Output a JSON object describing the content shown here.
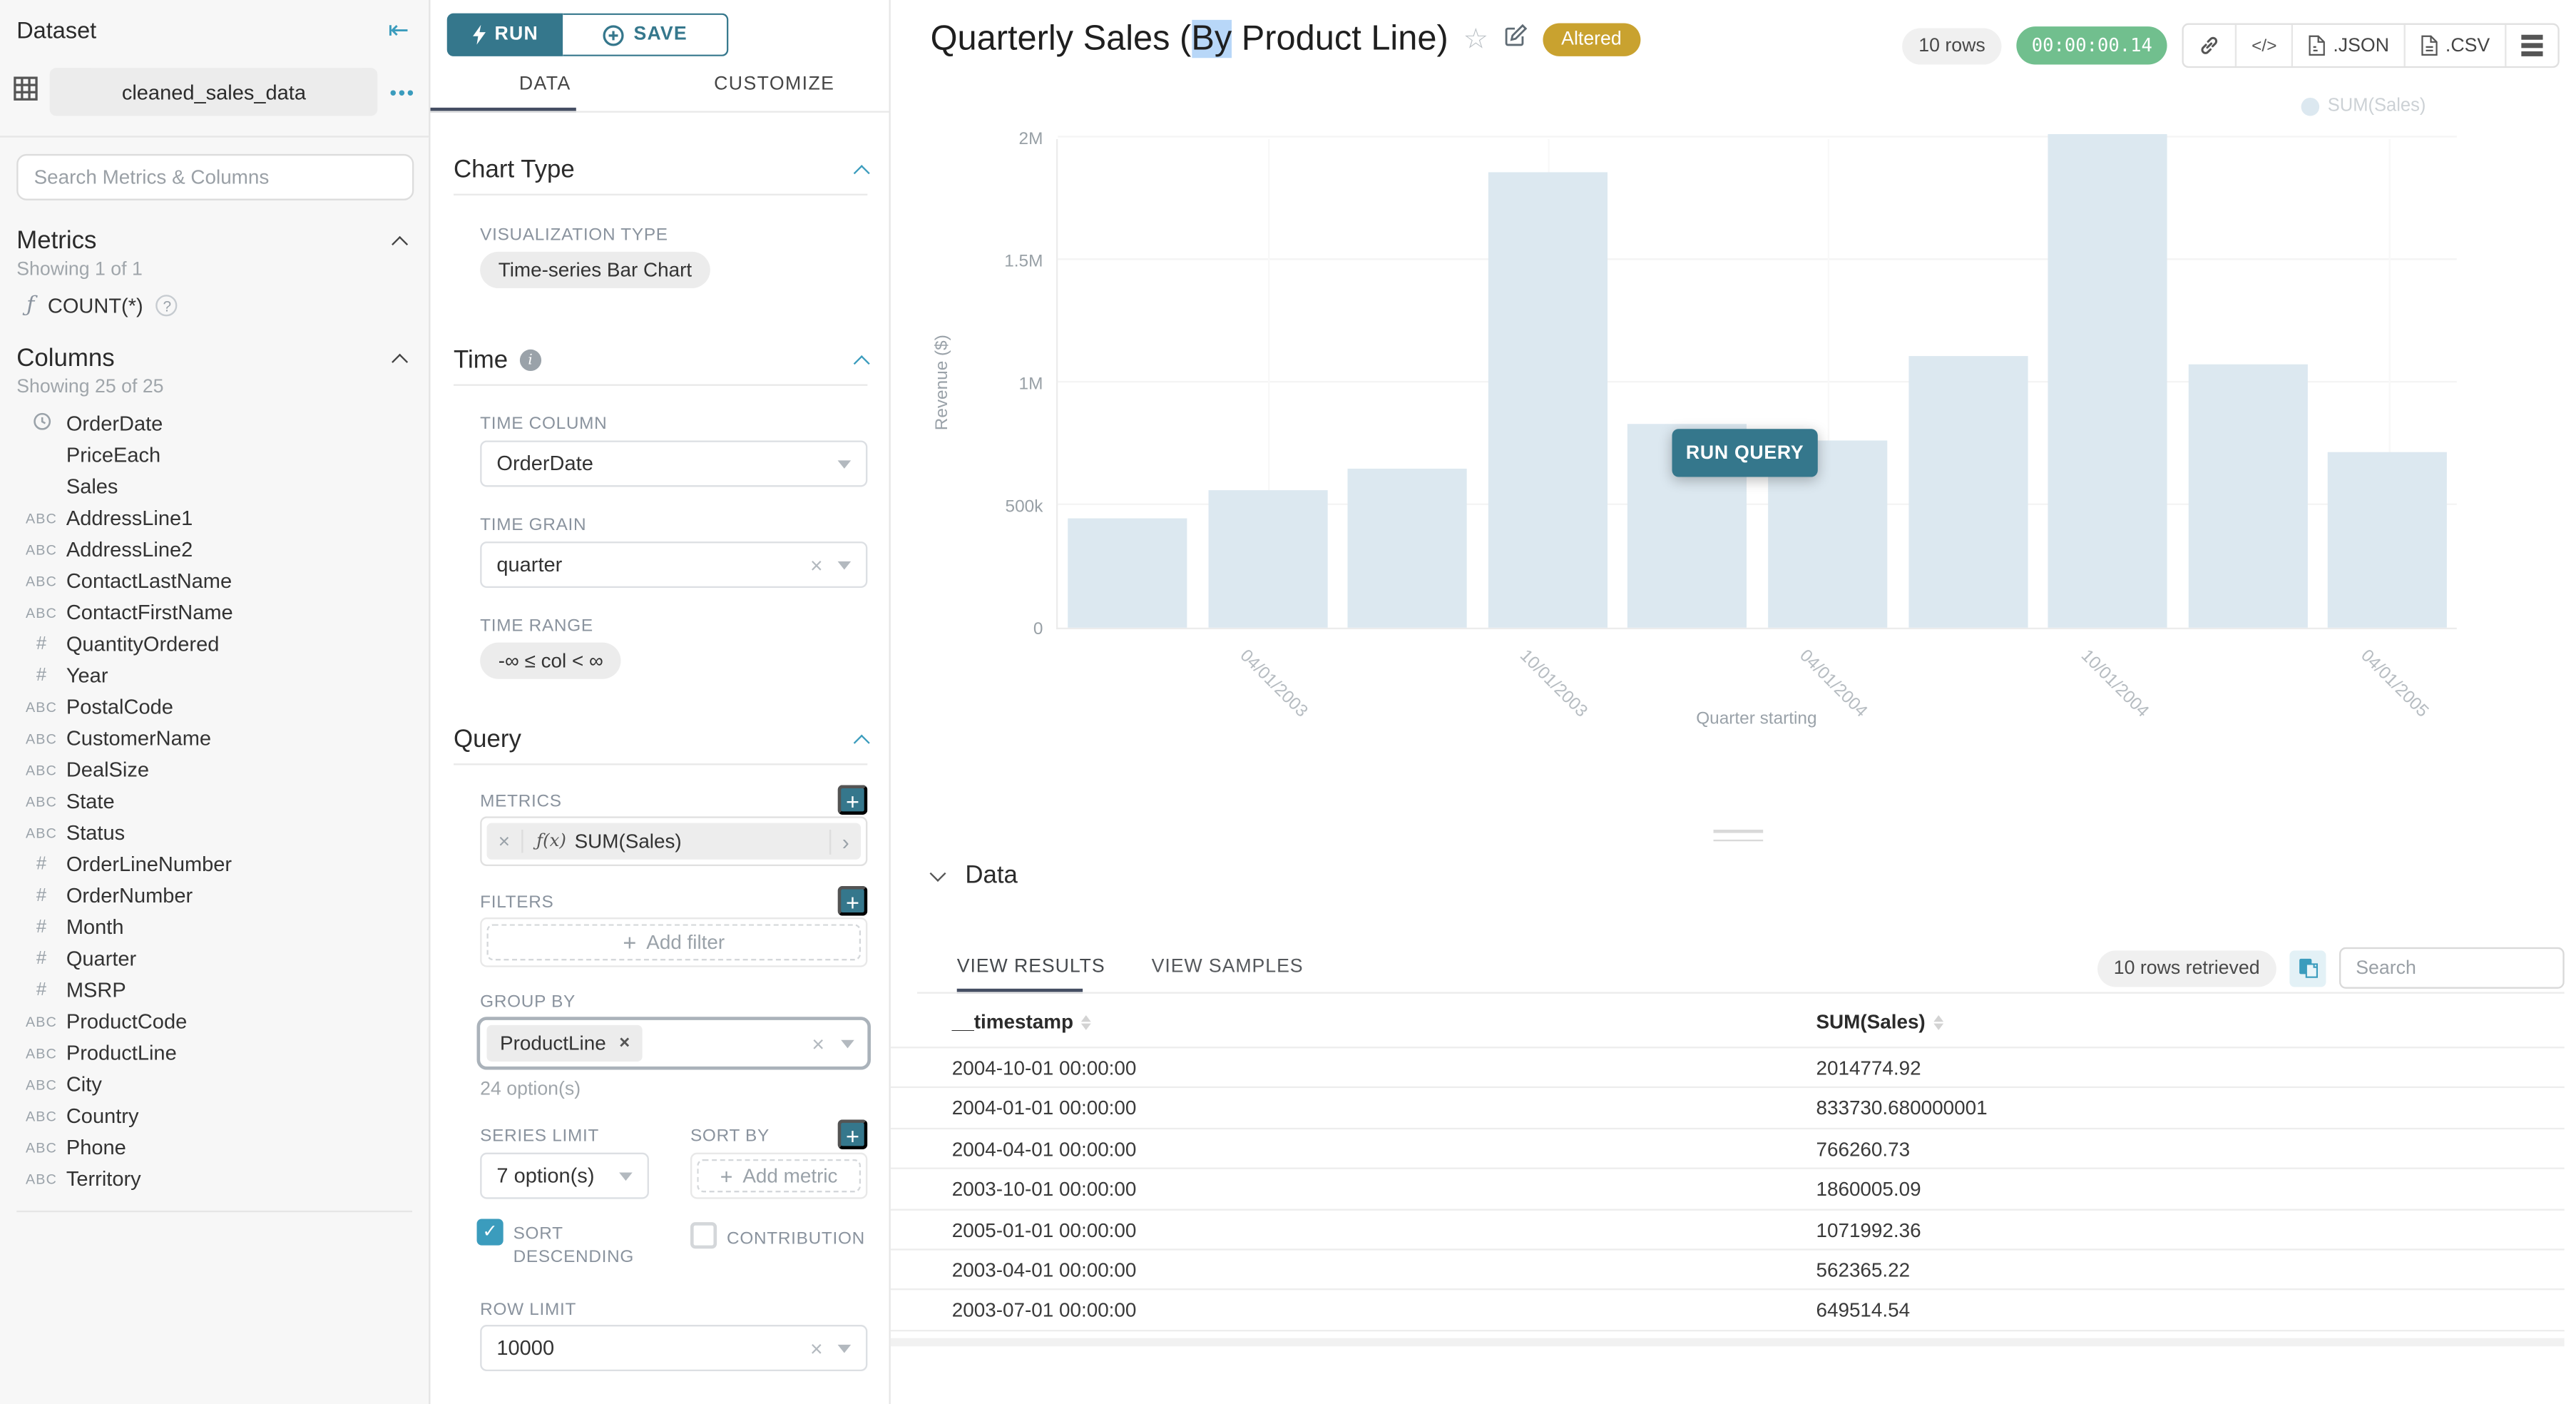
{
  "icons": {
    "collapse": "⇤",
    "dots": "•••",
    "star": "☆",
    "code": "</>",
    "close": "×",
    "text_type": "ABC",
    "num_type": "#",
    "function": "ƒ",
    "function_x": "ƒ(x)",
    "help": "?",
    "info": "i",
    "arrow_right": "›",
    "check": "✓",
    "plus": "+"
  },
  "colors": {
    "accent_dark": "#35778c",
    "accent": "#3b9cbd",
    "bar_fill": "#dce8f0",
    "altered_badge_bg": "#c9a22f",
    "timer_bg": "#71bf8e",
    "tab_underline": "#454e63"
  },
  "sidebar": {
    "title": "Dataset",
    "dataset_name": "cleaned_sales_data",
    "search_placeholder": "Search Metrics & Columns",
    "metrics": {
      "title": "Metrics",
      "showing": "Showing 1 of 1",
      "items": [
        {
          "name": "COUNT(*)"
        }
      ]
    },
    "columns": {
      "title": "Columns",
      "showing": "Showing 25 of 25",
      "items": [
        {
          "name": "OrderDate",
          "type": "time"
        },
        {
          "name": "PriceEach",
          "type": "none"
        },
        {
          "name": "Sales",
          "type": "none"
        },
        {
          "name": "AddressLine1",
          "type": "text"
        },
        {
          "name": "AddressLine2",
          "type": "text"
        },
        {
          "name": "ContactLastName",
          "type": "text"
        },
        {
          "name": "ContactFirstName",
          "type": "text"
        },
        {
          "name": "QuantityOrdered",
          "type": "num"
        },
        {
          "name": "Year",
          "type": "num"
        },
        {
          "name": "PostalCode",
          "type": "text"
        },
        {
          "name": "CustomerName",
          "type": "text"
        },
        {
          "name": "DealSize",
          "type": "text"
        },
        {
          "name": "State",
          "type": "text"
        },
        {
          "name": "Status",
          "type": "text"
        },
        {
          "name": "OrderLineNumber",
          "type": "num"
        },
        {
          "name": "OrderNumber",
          "type": "num"
        },
        {
          "name": "Month",
          "type": "num"
        },
        {
          "name": "Quarter",
          "type": "num"
        },
        {
          "name": "MSRP",
          "type": "num"
        },
        {
          "name": "ProductCode",
          "type": "text"
        },
        {
          "name": "ProductLine",
          "type": "text"
        },
        {
          "name": "City",
          "type": "text"
        },
        {
          "name": "Country",
          "type": "text"
        },
        {
          "name": "Phone",
          "type": "text"
        },
        {
          "name": "Territory",
          "type": "text"
        }
      ]
    }
  },
  "controls": {
    "run_label": "RUN",
    "save_label": "SAVE",
    "tabs": {
      "data": "DATA",
      "customize": "CUSTOMIZE"
    },
    "chart_type": {
      "title": "Chart Type",
      "viz_label": "VISUALIZATION TYPE",
      "viz_value": "Time-series Bar Chart"
    },
    "time": {
      "title": "Time",
      "column_label": "TIME COLUMN",
      "column_value": "OrderDate",
      "grain_label": "TIME GRAIN",
      "grain_value": "quarter",
      "range_label": "TIME RANGE",
      "range_value": "-∞ ≤ col < ∞"
    },
    "query": {
      "title": "Query",
      "metrics_label": "METRICS",
      "metric_prefix": "ƒ(x)",
      "metric_value": "SUM(Sales)",
      "filters_label": "FILTERS",
      "add_filter": "Add filter",
      "group_by_label": "GROUP BY",
      "group_by_value": "ProductLine",
      "group_by_hint": "24 option(s)",
      "series_limit_label": "SERIES LIMIT",
      "series_limit_value": "7 option(s)",
      "sort_by_label": "SORT BY",
      "add_metric": "Add metric",
      "sort_descending_label": "SORT DESCENDING",
      "contribution_label": "CONTRIBUTION",
      "row_limit_label": "ROW LIMIT",
      "row_limit_value": "10000"
    }
  },
  "header": {
    "title_pre": "Quarterly Sales (",
    "title_selected": "By",
    "title_post": " Product Line)",
    "altered_badge": "Altered",
    "rows_badge": "10 rows",
    "timer": "00:00:00.14",
    "export_json": ".JSON",
    "export_csv": ".CSV"
  },
  "chart": {
    "run_query_label": "RUN QUERY",
    "legend": "SUM(Sales)",
    "ylabel": "Revenue ($)",
    "xlabel": "Quarter starting"
  },
  "chart_data": {
    "type": "bar",
    "title": "Quarterly Sales (By Product Line)",
    "xlabel": "Quarter starting",
    "ylabel": "Revenue ($)",
    "x": [
      "2003-01-01",
      "2003-04-01",
      "2003-07-01",
      "2003-10-01",
      "2004-01-01",
      "2004-04-01",
      "2004-07-01",
      "2004-10-01",
      "2005-01-01",
      "2005-04-01"
    ],
    "series": [
      {
        "name": "SUM(Sales)",
        "values": [
          449000,
          562365.22,
          649514.54,
          1860005.09,
          833730.68,
          766260.73,
          1110000,
          2014774.92,
          1071992.36,
          715000
        ]
      }
    ],
    "ylim": [
      0,
      2000000
    ],
    "yticks": [
      "0",
      "500k",
      "1M",
      "1.5M",
      "2M"
    ],
    "xticks": [
      "04/01/2003",
      "10/01/2003",
      "04/01/2004",
      "10/01/2004",
      "04/01/2005"
    ],
    "xtick_bar_indices": [
      1,
      3,
      5,
      7,
      9
    ],
    "legend_position": "top-right",
    "grid": true
  },
  "results": {
    "section_title": "Data",
    "tabs": {
      "results": "VIEW RESULTS",
      "samples": "VIEW SAMPLES"
    },
    "rows_retrieved": "10 rows retrieved",
    "search_placeholder": "Search",
    "columns": [
      "__timestamp",
      "SUM(Sales)"
    ],
    "rows": [
      [
        "2004-10-01 00:00:00",
        "2014774.92"
      ],
      [
        "2004-01-01 00:00:00",
        "833730.680000001"
      ],
      [
        "2004-04-01 00:00:00",
        "766260.73"
      ],
      [
        "2003-10-01 00:00:00",
        "1860005.09"
      ],
      [
        "2005-01-01 00:00:00",
        "1071992.36"
      ],
      [
        "2003-04-01 00:00:00",
        "562365.22"
      ],
      [
        "2003-07-01 00:00:00",
        "649514.54"
      ]
    ]
  }
}
